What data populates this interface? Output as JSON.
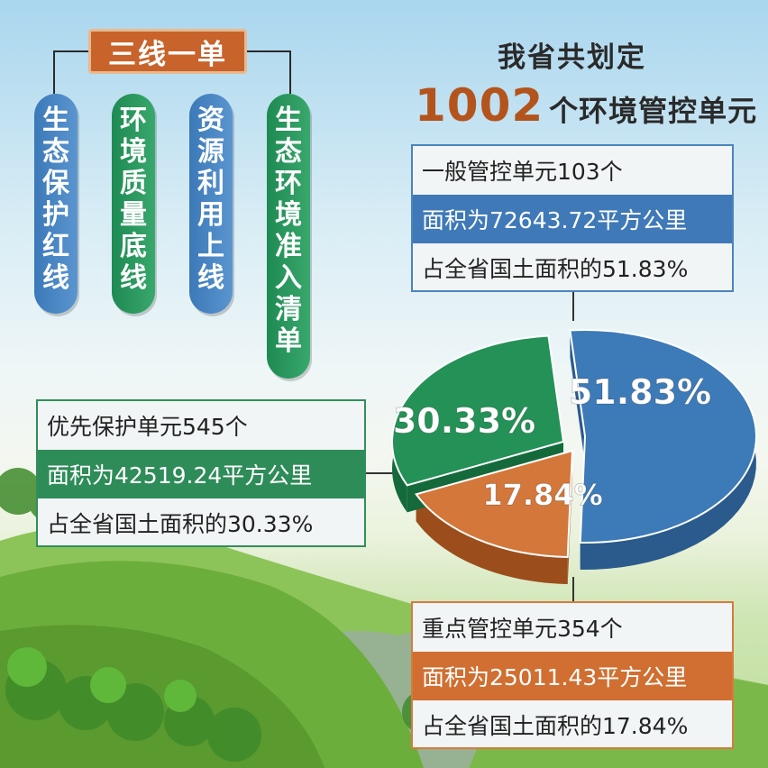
{
  "framework": {
    "title": "三线一单",
    "items": [
      {
        "text": "生态保护红线",
        "color": "blue"
      },
      {
        "text": "环境质量底线",
        "color": "green"
      },
      {
        "text": "资源利用上线",
        "color": "blue"
      },
      {
        "text": "生态环境准入清单",
        "color": "green"
      }
    ]
  },
  "headline": {
    "line1": "我省共划定",
    "number": "1002",
    "line2_suffix": "个环境管控单元"
  },
  "panels": {
    "general": {
      "line1": "一般管控单元103个",
      "line2": "面积为72643.72平方公里",
      "line3": "占全省国土面积的51.83%"
    },
    "priority": {
      "line1": "优先保护单元545个",
      "line2": "面积为42519.24平方公里",
      "line3": "占全省国土面积的30.33%"
    },
    "key": {
      "line1": "重点管控单元354个",
      "line2": "面积为25011.43平方公里",
      "line3": "占全省国土面积的17.84%"
    }
  },
  "chart_data": {
    "type": "pie",
    "style": "3d-exploded",
    "slices": [
      {
        "label": "51.83%",
        "value": 51.83,
        "color": "#3d7ab8",
        "side": "#2b5a8c"
      },
      {
        "label": "17.84%",
        "value": 17.84,
        "color": "#d4773a",
        "side": "#9b4d1c"
      },
      {
        "label": "30.33%",
        "value": 30.33,
        "color": "#249157",
        "side": "#156a3c"
      }
    ]
  },
  "colors": {
    "blue": "#3f79b8",
    "green": "#2e8c58",
    "orange": "#d06f31",
    "accent_number": "#b4541d"
  }
}
